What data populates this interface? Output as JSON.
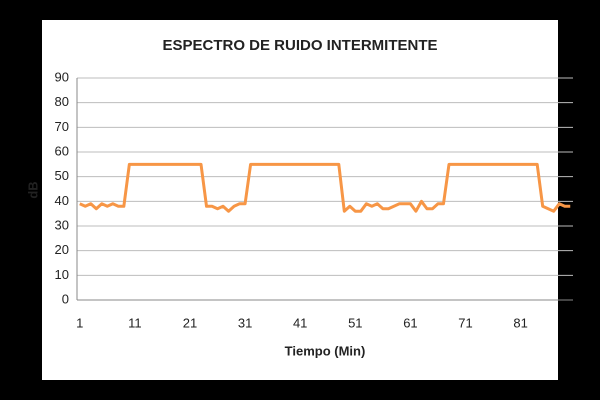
{
  "chart_data": {
    "type": "line",
    "title": "ESPECTRO DE RUIDO INTERMITENTE",
    "x_label": "Tiempo (Min)",
    "y_label": "dB",
    "categories": [
      1,
      null,
      null,
      null,
      null,
      null,
      null,
      null,
      null,
      null,
      11,
      null,
      null,
      null,
      null,
      null,
      null,
      null,
      null,
      null,
      21,
      null,
      null,
      null,
      null,
      null,
      null,
      null,
      null,
      null,
      31,
      null,
      null,
      null,
      null,
      null,
      null,
      null,
      null,
      null,
      41,
      null,
      null,
      null,
      null,
      null,
      null,
      null,
      null,
      null,
      51,
      null,
      null,
      null,
      null,
      null,
      null,
      null,
      null,
      null,
      61,
      null,
      null,
      null,
      null,
      null,
      null,
      null,
      null,
      null,
      71,
      null,
      null,
      null,
      null,
      null,
      null,
      null,
      null,
      null,
      81,
      null,
      null,
      null,
      null,
      null,
      null,
      null,
      null,
      null
    ],
    "series": [
      {
        "color": "#f79646",
        "values": [
          39,
          38,
          39,
          37,
          39,
          38,
          39,
          38,
          38,
          55,
          55,
          55,
          55,
          55,
          55,
          55,
          55,
          55,
          55,
          55,
          55,
          55,
          55,
          38,
          38,
          37,
          38,
          36,
          38,
          39,
          39,
          55,
          55,
          55,
          55,
          55,
          55,
          55,
          55,
          55,
          55,
          55,
          55,
          55,
          55,
          55,
          55,
          55,
          36,
          38,
          36,
          36,
          39,
          38,
          39,
          37,
          37,
          38,
          39,
          39,
          39,
          36,
          40,
          37,
          37,
          39,
          39,
          55,
          55,
          55,
          55,
          55,
          55,
          55,
          55,
          55,
          55,
          55,
          55,
          55,
          55,
          55,
          55,
          55,
          38,
          37,
          36,
          39,
          38,
          38
        ]
      }
    ],
    "ylim": [
      0,
      90
    ],
    "yticks": [
      0,
      10,
      20,
      30,
      40,
      50,
      60,
      70,
      80,
      90
    ],
    "grid": true
  }
}
